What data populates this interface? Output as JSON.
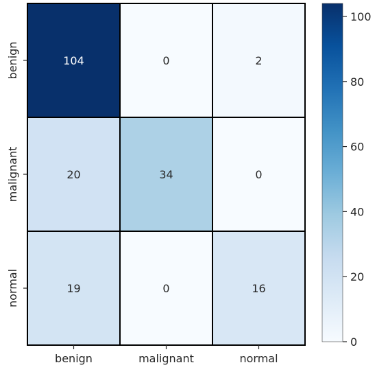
{
  "chart_data": {
    "type": "heatmap",
    "title": "",
    "xlabel": "",
    "ylabel": "",
    "row_labels": [
      "benign",
      "malignant",
      "normal"
    ],
    "col_labels": [
      "benign",
      "malignant",
      "normal"
    ],
    "values": [
      [
        104,
        0,
        2
      ],
      [
        20,
        34,
        0
      ],
      [
        19,
        0,
        16
      ]
    ],
    "colormap": "Blues",
    "vmin": 0,
    "vmax": 104,
    "colorbar": {
      "ticks": [
        0,
        20,
        40,
        60,
        80,
        100
      ],
      "tick_labels": [
        "0",
        "20",
        "40",
        "60",
        "80",
        "100"
      ],
      "placement": "right"
    },
    "cell_border_color": "#000000",
    "annotation_text_colors": {
      "dark_cell": "#ffffff",
      "light_cell": "#262626"
    }
  }
}
